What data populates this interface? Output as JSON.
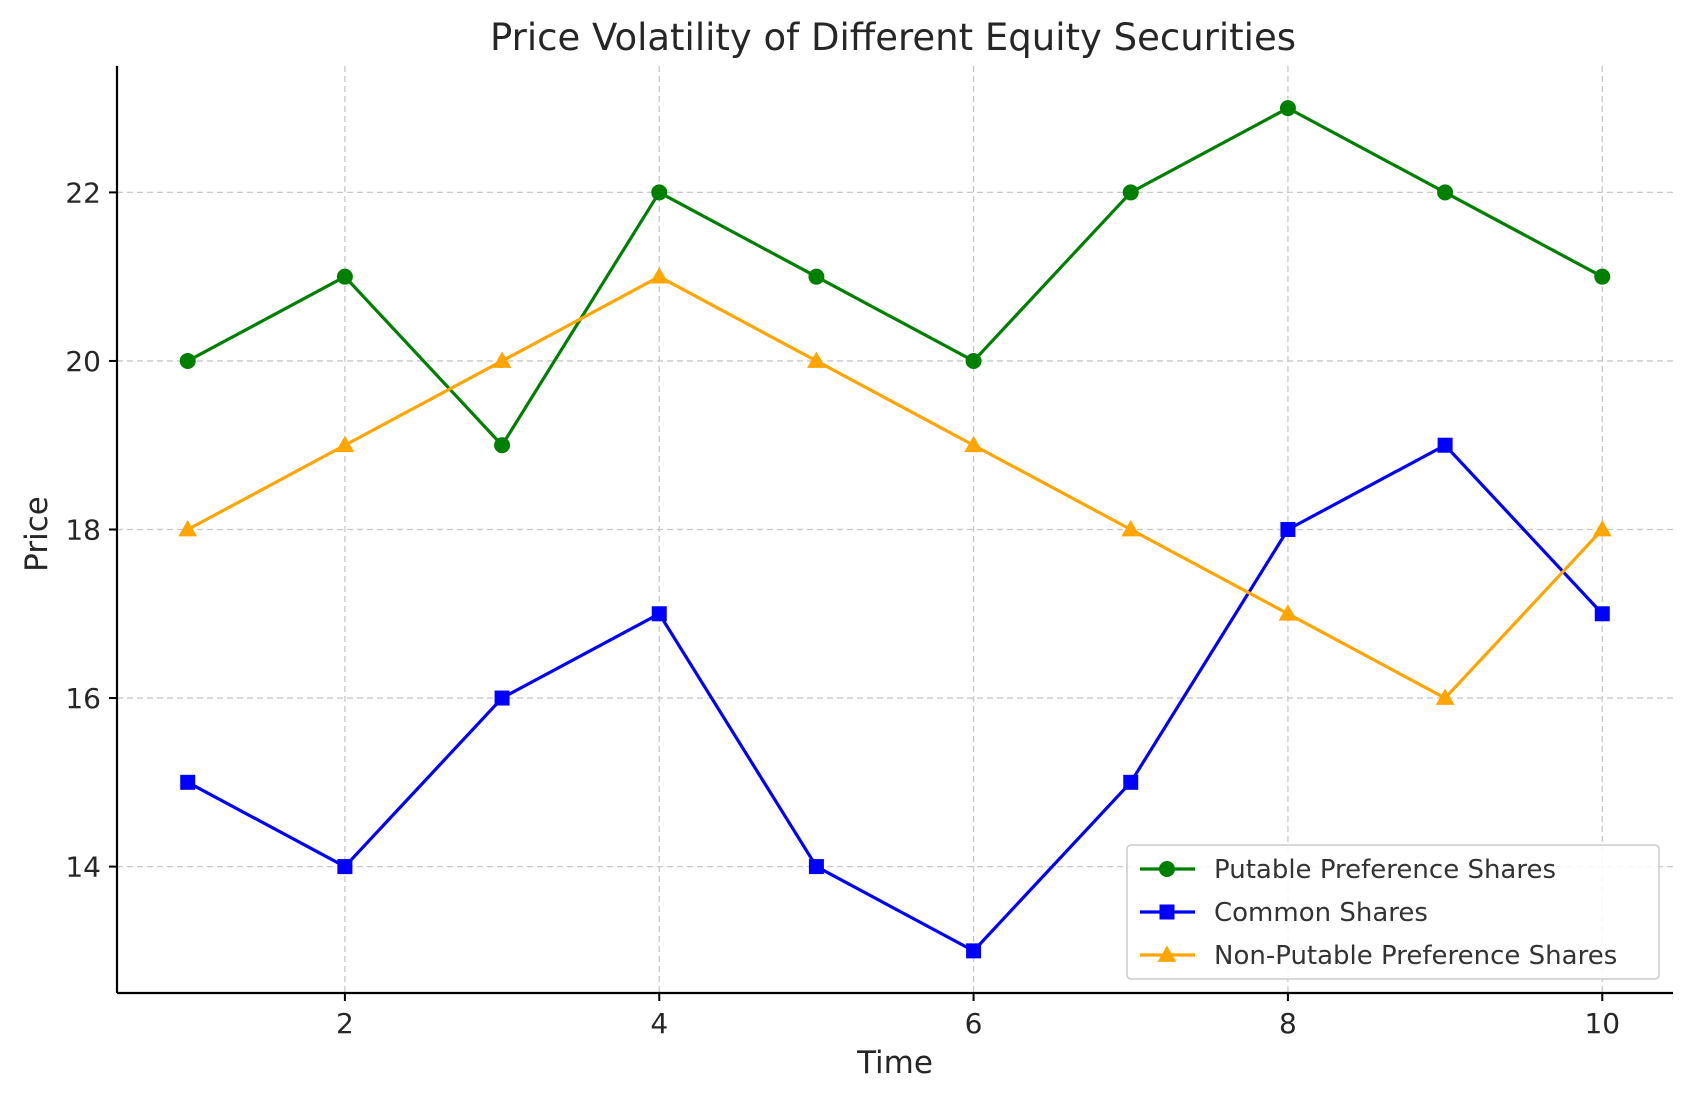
{
  "chart_data": {
    "type": "line",
    "title": "Price Volatility of Different Equity Securities",
    "xlabel": "Time",
    "ylabel": "Price",
    "x": [
      1,
      2,
      3,
      4,
      5,
      6,
      7,
      8,
      9,
      10
    ],
    "xlim": [
      0.55,
      10.45
    ],
    "ylim": [
      12.5,
      23.5
    ],
    "xticks": [
      2,
      4,
      6,
      8,
      10
    ],
    "yticks": [
      14,
      16,
      18,
      20,
      22
    ],
    "grid": true,
    "legend_position": "lower-right",
    "series": [
      {
        "name": "Putable Preference Shares",
        "color": "#008000",
        "marker": "circle",
        "values": [
          20,
          21,
          19,
          22,
          21,
          20,
          22,
          23,
          22,
          21
        ]
      },
      {
        "name": "Common Shares",
        "color": "#0000ff",
        "marker": "square",
        "values": [
          15,
          14,
          16,
          17,
          14,
          13,
          15,
          18,
          19,
          17
        ]
      },
      {
        "name": "Non-Putable Preference Shares",
        "color": "#ffa500",
        "marker": "triangle",
        "values": [
          18,
          19,
          20,
          21,
          20,
          19,
          18,
          17,
          16,
          18
        ]
      }
    ]
  }
}
